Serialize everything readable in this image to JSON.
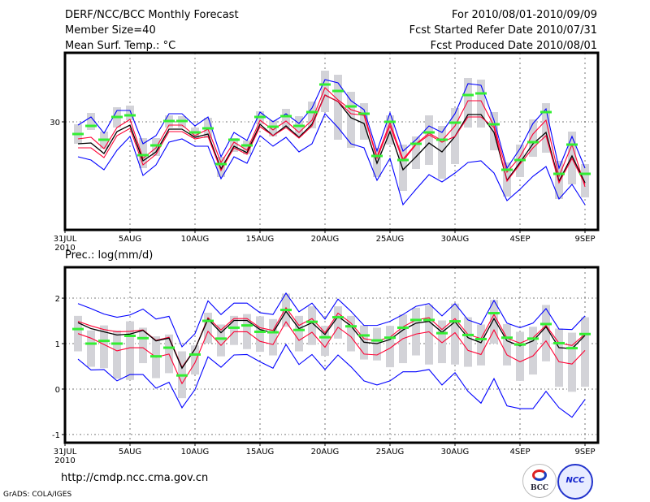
{
  "header": {
    "title": "DERF/NCC/BCC Monthly Forecast",
    "member_size": "Member Size=40",
    "variable": "Mean Surf. Temp.: °C",
    "period": "For 2010/08/01-2010/09/09",
    "start_date": "Fcst Started Refer Date 2010/07/31",
    "produced_date": "Fcst Produced Date 2010/08/01"
  },
  "footer": {
    "url": "http://cmdp.ncc.cma.gov.cn",
    "grads": "GrADS: COLA/IGES",
    "logo_bcc": "BCC",
    "logo_ncc": "NCC"
  },
  "colors": {
    "outer": "#0000ff",
    "inner": "#ff0033",
    "mean": "#000000",
    "obs": "#33ee33",
    "range": "#d3d3d8",
    "grid": "#777777"
  },
  "chart_data": [
    {
      "type": "line",
      "title": "Mean Surf. Temp.: °C",
      "x_ticks": [
        "31JUL",
        "5AUG",
        "10AUG",
        "15AUG",
        "20AUG",
        "25AUG",
        "30AUG",
        "4SEP",
        "9SEP"
      ],
      "x_year": "2010",
      "x_range_days": [
        0,
        40
      ],
      "ylim": [
        23.35,
        34.25
      ],
      "y_ticks": [
        30
      ],
      "y_tick_labels": [
        "30"
      ],
      "days": [
        1,
        2,
        3,
        4,
        5,
        6,
        7,
        8,
        9,
        10,
        11,
        12,
        13,
        14,
        15,
        16,
        17,
        18,
        19,
        20,
        21,
        22,
        23,
        24,
        25,
        26,
        27,
        28,
        29,
        30,
        31,
        32,
        33,
        34,
        35,
        36,
        37,
        38,
        39,
        40
      ],
      "series": [
        {
          "name": "outer-upper",
          "color": "outer",
          "values": [
            29.8,
            30.3,
            29.3,
            30.7,
            30.7,
            28.65,
            29.15,
            30.5,
            30.5,
            29.75,
            30.3,
            27.85,
            29.35,
            28.85,
            30.6,
            30.0,
            30.5,
            29.9,
            30.85,
            32.6,
            32.4,
            31.3,
            30.75,
            28.2,
            30.55,
            28.2,
            28.9,
            29.75,
            29.35,
            30.5,
            32.35,
            32.25,
            30.1,
            27.15,
            28.35,
            29.9,
            30.8,
            27.15,
            29.1,
            27.15
          ]
        },
        {
          "name": "inner-upper",
          "color": "inner",
          "values": [
            28.95,
            29.05,
            28.35,
            29.65,
            30.15,
            27.75,
            28.4,
            29.8,
            29.8,
            29.15,
            29.55,
            27.5,
            28.75,
            28.25,
            30.1,
            29.5,
            30.05,
            29.35,
            30.1,
            32.1,
            31.35,
            30.75,
            30.5,
            27.85,
            29.95,
            27.7,
            28.65,
            29.3,
            28.85,
            29.75,
            31.3,
            31.3,
            29.75,
            26.9,
            27.85,
            29.25,
            30.1,
            26.65,
            28.6,
            26.0
          ]
        },
        {
          "name": "ensemble-mean",
          "color": "mean",
          "values": [
            28.65,
            28.7,
            28.05,
            29.4,
            29.8,
            27.6,
            28.15,
            29.55,
            29.55,
            29.05,
            29.25,
            27.1,
            28.5,
            28.1,
            29.85,
            29.15,
            29.75,
            29.05,
            29.85,
            31.65,
            31.25,
            30.25,
            29.9,
            27.45,
            29.4,
            27.05,
            27.85,
            28.7,
            28.15,
            29.1,
            30.45,
            30.45,
            29.35,
            26.4,
            27.5,
            28.65,
            29.35,
            26.35,
            27.9,
            26.25
          ]
        },
        {
          "name": "inner-lower",
          "color": "inner",
          "values": [
            28.4,
            28.4,
            27.8,
            29.15,
            29.6,
            27.35,
            28.0,
            29.4,
            29.4,
            28.95,
            29.1,
            27.0,
            28.4,
            28.0,
            29.7,
            29.15,
            29.65,
            29.0,
            29.75,
            31.65,
            31.25,
            30.5,
            30.4,
            27.75,
            29.75,
            27.6,
            28.6,
            29.2,
            28.75,
            29.1,
            30.3,
            30.3,
            29.65,
            26.35,
            27.4,
            28.4,
            29.15,
            26.25,
            27.75,
            26.15
          ]
        },
        {
          "name": "outer-lower",
          "color": "outer",
          "values": [
            27.85,
            27.65,
            27.05,
            28.25,
            29.1,
            26.7,
            27.35,
            28.75,
            28.95,
            28.5,
            28.5,
            26.5,
            27.85,
            27.45,
            29.15,
            28.5,
            29.05,
            28.15,
            28.65,
            30.5,
            29.65,
            28.65,
            28.4,
            26.4,
            27.75,
            24.9,
            25.85,
            26.75,
            26.3,
            26.85,
            27.5,
            27.6,
            26.85,
            25.15,
            25.85,
            26.65,
            27.25,
            25.25,
            26.15,
            24.9
          ]
        }
      ],
      "observed": [
        29.25,
        29.75,
        28.9,
        30.3,
        30.4,
        27.95,
        28.55,
        30.05,
        30.05,
        29.35,
        29.6,
        27.4,
        28.9,
        28.55,
        30.3,
        29.7,
        30.35,
        29.75,
        30.6,
        32.3,
        31.9,
        30.95,
        30.5,
        27.9,
        30.0,
        27.65,
        28.65,
        29.35,
        28.9,
        29.95,
        31.65,
        31.75,
        29.85,
        27.05,
        27.65,
        28.75,
        30.6,
        26.8,
        28.6,
        26.8
      ],
      "range_max": [
        29.85,
        30.55,
        29.4,
        30.9,
        31.0,
        29.0,
        29.0,
        30.4,
        30.35,
        29.65,
        30.25,
        27.85,
        29.0,
        28.85,
        30.65,
        30.1,
        30.8,
        30.35,
        31.25,
        33.15,
        32.9,
        31.85,
        31.15,
        28.4,
        30.4,
        28.6,
        29.1,
        30.4,
        29.75,
        30.85,
        32.7,
        32.6,
        30.6,
        27.5,
        28.6,
        30.15,
        31.15,
        27.6,
        29.4,
        27.4
      ],
      "range_min": [
        28.65,
        29.5,
        28.35,
        29.65,
        30.1,
        27.15,
        27.9,
        29.65,
        29.65,
        29.0,
        29.0,
        26.6,
        28.15,
        28.0,
        29.85,
        29.1,
        29.65,
        29.15,
        29.6,
        30.6,
        28.9,
        28.4,
        28.9,
        26.6,
        28.6,
        25.75,
        27.1,
        27.35,
        26.5,
        27.4,
        29.65,
        29.65,
        28.25,
        25.4,
        26.6,
        27.85,
        28.1,
        25.25,
        26.15,
        25.35
      ]
    },
    {
      "type": "line",
      "title": "Prec.: log(mm/d)",
      "x_ticks": [
        "31JUL",
        "5AUG",
        "10AUG",
        "15AUG",
        "20AUG",
        "25AUG",
        "30AUG",
        "4SEP",
        "9SEP"
      ],
      "x_year": "2010",
      "x_range_days": [
        0,
        40
      ],
      "ylim": [
        -1.18,
        2.68
      ],
      "y_ticks": [
        -1,
        0,
        1,
        2
      ],
      "y_tick_labels": [
        "-1",
        "0",
        "1",
        "2"
      ],
      "days": [
        1,
        2,
        3,
        4,
        5,
        6,
        7,
        8,
        9,
        10,
        11,
        12,
        13,
        14,
        15,
        16,
        17,
        18,
        19,
        20,
        21,
        22,
        23,
        24,
        25,
        26,
        27,
        28,
        29,
        30,
        31,
        32,
        33,
        34,
        35,
        36,
        37,
        38,
        39,
        40
      ],
      "series": [
        {
          "name": "outer-upper",
          "color": "outer",
          "values": [
            1.88,
            1.77,
            1.65,
            1.58,
            1.63,
            1.76,
            1.54,
            1.6,
            0.93,
            1.22,
            1.94,
            1.64,
            1.89,
            1.89,
            1.68,
            1.64,
            2.11,
            1.7,
            1.89,
            1.54,
            1.98,
            1.71,
            1.4,
            1.4,
            1.49,
            1.64,
            1.82,
            1.88,
            1.61,
            1.88,
            1.52,
            1.42,
            1.95,
            1.45,
            1.35,
            1.45,
            1.77,
            1.32,
            1.31,
            1.61
          ]
        },
        {
          "name": "inner-upper",
          "color": "inner",
          "values": [
            1.49,
            1.39,
            1.31,
            1.26,
            1.27,
            1.3,
            1.07,
            1.14,
            0.48,
            0.88,
            1.57,
            1.3,
            1.55,
            1.55,
            1.35,
            1.29,
            1.79,
            1.4,
            1.55,
            1.24,
            1.67,
            1.45,
            1.11,
            1.06,
            1.14,
            1.37,
            1.52,
            1.57,
            1.31,
            1.55,
            1.2,
            1.11,
            1.64,
            1.12,
            1.01,
            1.13,
            1.4,
            1.01,
            0.96,
            1.21
          ]
        },
        {
          "name": "ensemble-mean",
          "color": "mean",
          "values": [
            1.46,
            1.33,
            1.26,
            1.19,
            1.21,
            1.29,
            1.06,
            1.12,
            0.46,
            0.88,
            1.54,
            1.24,
            1.51,
            1.51,
            1.31,
            1.24,
            1.71,
            1.33,
            1.46,
            1.2,
            1.6,
            1.39,
            1.03,
            1.0,
            1.09,
            1.3,
            1.45,
            1.49,
            1.25,
            1.48,
            1.13,
            1.02,
            1.55,
            1.06,
            0.95,
            1.06,
            1.37,
            0.91,
            0.89,
            1.18
          ]
        },
        {
          "name": "inner-lower",
          "color": "inner",
          "values": [
            1.22,
            1.12,
            0.98,
            0.84,
            0.91,
            0.91,
            0.7,
            0.77,
            0.12,
            0.58,
            1.27,
            0.96,
            1.26,
            1.26,
            1.05,
            0.98,
            1.48,
            1.07,
            1.25,
            0.92,
            1.36,
            1.15,
            0.77,
            0.75,
            0.9,
            1.11,
            1.21,
            1.26,
            1.02,
            1.24,
            0.85,
            0.76,
            1.3,
            0.75,
            0.6,
            0.73,
            1.06,
            0.6,
            0.55,
            0.85
          ]
        },
        {
          "name": "outer-lower",
          "color": "outer",
          "values": [
            0.66,
            0.42,
            0.43,
            0.18,
            0.32,
            0.32,
            0.02,
            0.15,
            -0.41,
            -0.01,
            0.71,
            0.48,
            0.75,
            0.76,
            0.6,
            0.46,
            0.98,
            0.54,
            0.76,
            0.43,
            0.75,
            0.49,
            0.18,
            0.09,
            0.18,
            0.38,
            0.38,
            0.43,
            0.09,
            0.36,
            -0.05,
            -0.31,
            0.23,
            -0.37,
            -0.43,
            -0.43,
            -0.05,
            -0.41,
            -0.62,
            -0.23
          ]
        }
      ],
      "observed": [
        1.32,
        1.0,
        1.06,
        1.0,
        1.17,
        1.12,
        0.72,
        0.91,
        0.3,
        0.76,
        1.5,
        1.11,
        1.35,
        1.4,
        1.26,
        1.25,
        1.74,
        1.3,
        1.48,
        1.14,
        1.58,
        1.38,
        1.18,
        1.07,
        1.13,
        1.35,
        1.52,
        1.52,
        1.23,
        1.49,
        1.19,
        1.1,
        1.67,
        1.13,
        0.98,
        1.11,
        1.43,
        1.01,
        0.9,
        1.21
      ],
      "range_max": [
        1.61,
        1.29,
        1.4,
        1.29,
        1.49,
        1.35,
        1.16,
        1.2,
        0.83,
        0.96,
        1.68,
        1.42,
        1.61,
        1.65,
        1.6,
        1.54,
        2.1,
        1.61,
        1.82,
        1.39,
        1.82,
        1.61,
        1.4,
        1.35,
        1.39,
        1.64,
        1.79,
        1.85,
        1.51,
        1.88,
        1.58,
        1.42,
        1.96,
        1.43,
        1.26,
        1.37,
        1.85,
        1.33,
        1.24,
        1.58
      ],
      "range_min": [
        0.83,
        0.49,
        0.46,
        0.23,
        0.2,
        0.57,
        0.24,
        0.35,
        -0.2,
        0.32,
        1.01,
        0.72,
        0.97,
        0.88,
        0.82,
        0.74,
        1.37,
        0.83,
        0.97,
        0.73,
        1.11,
        0.83,
        0.65,
        0.63,
        0.48,
        0.57,
        0.74,
        0.54,
        0.57,
        0.54,
        0.49,
        0.52,
        1.0,
        0.52,
        0.18,
        0.32,
        0.61,
        0.05,
        -0.06,
        0.05
      ]
    }
  ]
}
